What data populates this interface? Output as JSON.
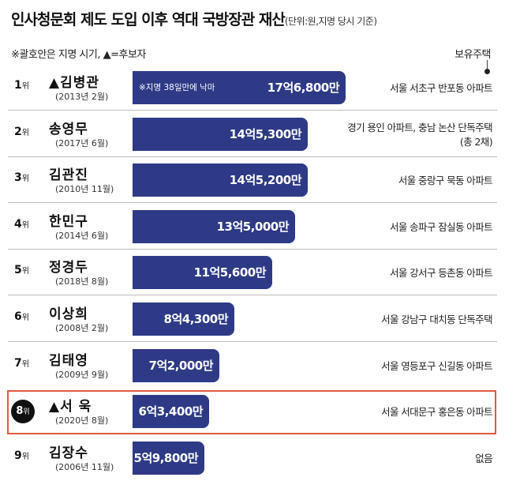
{
  "header": {
    "title": "인사청문회 제도 도입 이후 역대 국방장관 재산",
    "unit_note": "(단위:원,지명 당시 기준)",
    "legend_note": "※괄호안은 지명 시기, ▲=후보자",
    "column_label": "보유주택"
  },
  "colors": {
    "bar": "#2e3a86",
    "highlight_border": "#e15a3c",
    "badge": "#111111"
  },
  "chart_data": {
    "type": "bar",
    "orientation": "horizontal",
    "title": "인사청문회 제도 도입 이후 역대 국방장관 재산",
    "unit": "원",
    "categories": [
      "▲김병관",
      "송영무",
      "김관진",
      "한민구",
      "정경두",
      "이상희",
      "김태영",
      "▲서  욱",
      "김장수"
    ],
    "values": [
      1768000000,
      1453000000,
      1452000000,
      1350000000,
      1156000000,
      843000000,
      720000000,
      634000000,
      598000000
    ],
    "value_labels": [
      "17억6,800만",
      "14억5,300만",
      "14억5,200만",
      "13억5,000만",
      "11억5,600만",
      "8억4,300만",
      "7억2,000만",
      "6억3,400만",
      "5억9,800만"
    ],
    "xlim": [
      0,
      1768000000
    ],
    "grid": false,
    "highlighted_index": 7
  },
  "rows": [
    {
      "rank": "1",
      "rank_suffix": "위",
      "name": "▲김병관",
      "date": "(2013년 2월)",
      "note": "※지명 38일만에 낙마",
      "housing": "서울 서초구 반포동 아파트"
    },
    {
      "rank": "2",
      "rank_suffix": "위",
      "name": "송영무",
      "date": "(2017년 6월)",
      "note": "",
      "housing": "경기 용인 아파트, 충남 논산 단독주택(총 2채)"
    },
    {
      "rank": "3",
      "rank_suffix": "위",
      "name": "김관진",
      "date": "(2010년 11월)",
      "note": "",
      "housing": "서울 중랑구 묵동 아파트"
    },
    {
      "rank": "4",
      "rank_suffix": "위",
      "name": "한민구",
      "date": "(2014년 6월)",
      "note": "",
      "housing": "서울 송파구 잠실동 아파트"
    },
    {
      "rank": "5",
      "rank_suffix": "위",
      "name": "정경두",
      "date": "(2018년 8월)",
      "note": "",
      "housing": "서울 강서구 등촌동 아파트"
    },
    {
      "rank": "6",
      "rank_suffix": "위",
      "name": "이상희",
      "date": "(2008년 2월)",
      "note": "",
      "housing": "서울 강남구 대치동 단독주택"
    },
    {
      "rank": "7",
      "rank_suffix": "위",
      "name": "김태영",
      "date": "(2009년 9월)",
      "note": "",
      "housing": "서울 영등포구 신길동 아파트"
    },
    {
      "rank": "8",
      "rank_suffix": "위",
      "name": "▲서  욱",
      "date": "(2020년 8월)",
      "note": "",
      "housing": "서울 서대문구 홍은동 아파트"
    },
    {
      "rank": "9",
      "rank_suffix": "위",
      "name": "김장수",
      "date": "(2006년 11월)",
      "note": "",
      "housing": "없음"
    }
  ]
}
